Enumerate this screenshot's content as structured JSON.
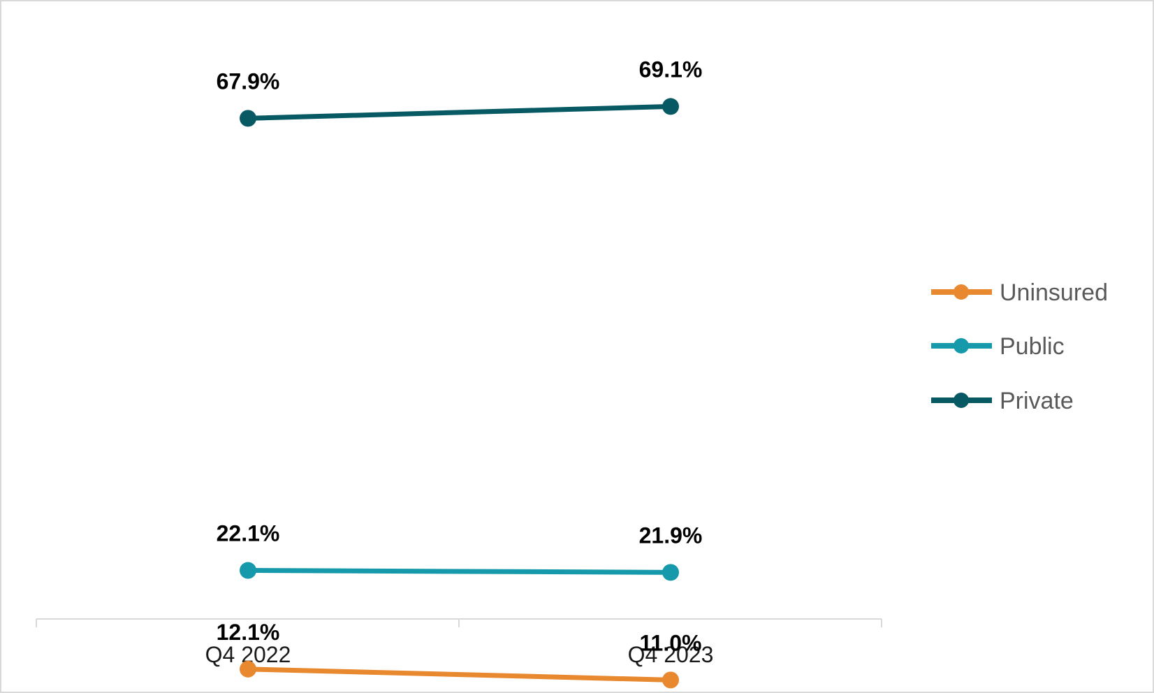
{
  "chart_data": {
    "type": "line",
    "categories": [
      "Q4 2022",
      "Q4 2023"
    ],
    "series": [
      {
        "name": "Uninsured",
        "values": [
          12.1,
          11.0
        ],
        "labels": [
          "12.1%",
          "11.0%"
        ],
        "color": "#E8892F"
      },
      {
        "name": "Public",
        "values": [
          22.1,
          21.9
        ],
        "labels": [
          "22.1%",
          "21.9%"
        ],
        "color": "#169AAB"
      },
      {
        "name": "Private",
        "values": [
          67.9,
          69.1
        ],
        "labels": [
          "67.9%",
          "69.1%"
        ],
        "color": "#075A63"
      }
    ],
    "title": "",
    "xlabel": "",
    "ylabel": "",
    "ylim": [
      0,
      75
    ],
    "grid": false,
    "legend": "right"
  }
}
